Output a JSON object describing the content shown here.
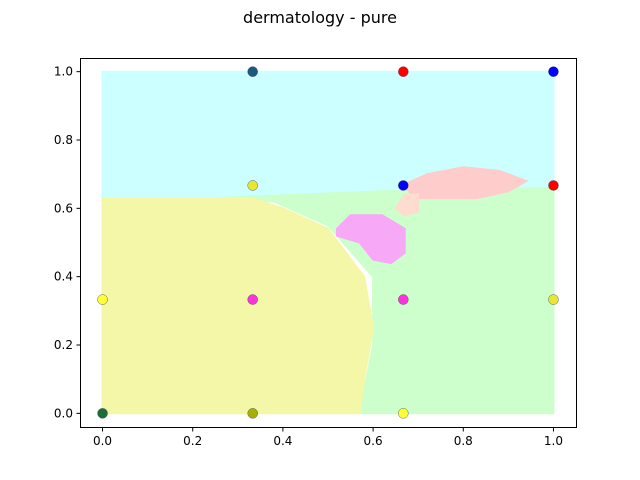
{
  "chart_data": {
    "type": "scatter",
    "title": "dermatology - pure",
    "xlabel": "",
    "ylabel": "",
    "xlim": [
      -0.05,
      1.05
    ],
    "ylim": [
      -0.04,
      1.04
    ],
    "xticks": [
      0.0,
      0.2,
      0.4,
      0.6,
      0.8,
      1.0
    ],
    "yticks": [
      0.0,
      0.2,
      0.4,
      0.6,
      0.8,
      1.0
    ],
    "xtick_labels": [
      "0.0",
      "0.2",
      "0.4",
      "0.6",
      "0.8",
      "1.0"
    ],
    "ytick_labels": [
      "0.0",
      "0.2",
      "0.4",
      "0.6",
      "0.8",
      "1.0"
    ],
    "grid": false,
    "regions": [
      {
        "color": "#ccffff",
        "polygon": [
          [
            0.0,
            1.0
          ],
          [
            1.0,
            1.0
          ],
          [
            1.0,
            0.66
          ],
          [
            0.73,
            0.65
          ],
          [
            0.6,
            0.65
          ],
          [
            0.32,
            0.63
          ],
          [
            0.0,
            0.63
          ]
        ]
      },
      {
        "color": "#ccffcc",
        "polygon": [
          [
            0.25,
            0.63
          ],
          [
            0.62,
            0.65
          ],
          [
            1.0,
            0.66
          ],
          [
            1.0,
            0.0
          ],
          [
            0.57,
            0.0
          ],
          [
            0.6,
            0.2
          ],
          [
            0.6,
            0.4
          ],
          [
            0.5,
            0.55
          ],
          [
            0.38,
            0.62
          ]
        ]
      },
      {
        "color": "#f5f7a8",
        "polygon": [
          [
            0.0,
            0.0
          ],
          [
            0.57,
            0.0
          ],
          [
            0.58,
            0.1
          ],
          [
            0.6,
            0.25
          ],
          [
            0.58,
            0.4
          ],
          [
            0.5,
            0.54
          ],
          [
            0.4,
            0.6
          ],
          [
            0.33,
            0.63
          ],
          [
            0.0,
            0.63
          ]
        ]
      },
      {
        "color": "#f7a8f7",
        "polygon": [
          [
            0.52,
            0.54
          ],
          [
            0.55,
            0.58
          ],
          [
            0.62,
            0.58
          ],
          [
            0.67,
            0.54
          ],
          [
            0.67,
            0.47
          ],
          [
            0.64,
            0.44
          ],
          [
            0.6,
            0.45
          ],
          [
            0.57,
            0.5
          ],
          [
            0.52,
            0.52
          ]
        ]
      },
      {
        "color": "#ffcccc",
        "polygon": [
          [
            0.67,
            0.67
          ],
          [
            0.72,
            0.7
          ],
          [
            0.8,
            0.72
          ],
          [
            0.88,
            0.71
          ],
          [
            0.94,
            0.68
          ],
          [
            0.9,
            0.65
          ],
          [
            0.83,
            0.63
          ],
          [
            0.75,
            0.63
          ],
          [
            0.69,
            0.63
          ]
        ]
      },
      {
        "color": "#ffdcd0",
        "polygon": [
          [
            0.65,
            0.6
          ],
          [
            0.67,
            0.64
          ],
          [
            0.7,
            0.64
          ],
          [
            0.7,
            0.59
          ],
          [
            0.67,
            0.58
          ]
        ]
      }
    ],
    "points": [
      {
        "x": 0.0,
        "y": 0.0,
        "color": "#1a6e3a"
      },
      {
        "x": 0.0,
        "y": 0.333,
        "color": "#ffff33"
      },
      {
        "x": 0.333,
        "y": 0.0,
        "color": "#a6b000"
      },
      {
        "x": 0.333,
        "y": 0.333,
        "color": "#ff33dd"
      },
      {
        "x": 0.333,
        "y": 0.667,
        "color": "#e6e633"
      },
      {
        "x": 0.333,
        "y": 1.0,
        "color": "#1a5a80"
      },
      {
        "x": 0.667,
        "y": 0.0,
        "color": "#ffff33"
      },
      {
        "x": 0.667,
        "y": 0.333,
        "color": "#ff33dd"
      },
      {
        "x": 0.667,
        "y": 0.667,
        "color": "#0000ff"
      },
      {
        "x": 0.667,
        "y": 1.0,
        "color": "#ff0000"
      },
      {
        "x": 1.0,
        "y": 0.333,
        "color": "#e6e633"
      },
      {
        "x": 1.0,
        "y": 0.667,
        "color": "#ff0000"
      },
      {
        "x": 1.0,
        "y": 1.0,
        "color": "#0000ff"
      }
    ]
  }
}
